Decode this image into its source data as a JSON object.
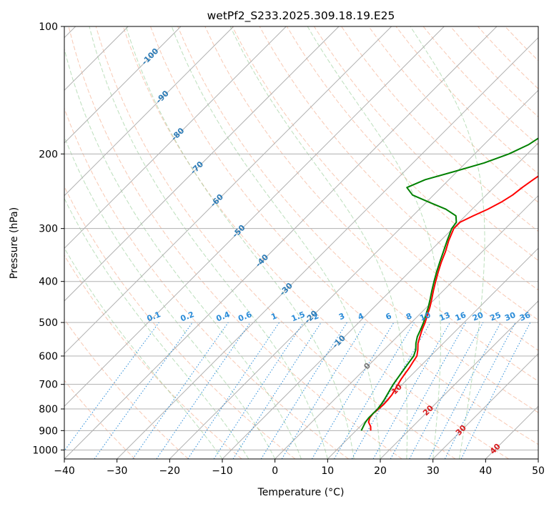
{
  "chart_data": {
    "type": "line",
    "title": "wetPf2_S233.2025.309.18.19.E25",
    "xlabel": "Temperature (°C)",
    "ylabel": "Pressure (hPa)",
    "xlim": [
      -40,
      50
    ],
    "ylim": [
      1050,
      100
    ],
    "x_ticks": [
      "−40",
      "−30",
      "−20",
      "−10",
      "0",
      "10",
      "20",
      "30",
      "40",
      "50"
    ],
    "y_ticks": [
      "100",
      "200",
      "300",
      "400",
      "500",
      "600",
      "700",
      "800",
      "900",
      "1000"
    ],
    "series": [
      {
        "name": "Temperature",
        "color": "#ff0000",
        "points": [
          [
            900,
            12.8
          ],
          [
            880,
            12.0
          ],
          [
            860,
            10.8
          ],
          [
            840,
            10.2
          ],
          [
            820,
            10.0
          ],
          [
            800,
            10.2
          ],
          [
            780,
            10.3
          ],
          [
            760,
            10.2
          ],
          [
            740,
            10.0
          ],
          [
            720,
            9.6
          ],
          [
            700,
            9.2
          ],
          [
            680,
            8.8
          ],
          [
            660,
            8.5
          ],
          [
            640,
            8.2
          ],
          [
            620,
            7.8
          ],
          [
            600,
            7.4
          ],
          [
            580,
            6.4
          ],
          [
            560,
            5.2
          ],
          [
            540,
            4.3
          ],
          [
            520,
            3.4
          ],
          [
            500,
            2.6
          ],
          [
            480,
            1.6
          ],
          [
            460,
            0.6
          ],
          [
            440,
            -0.6
          ],
          [
            420,
            -1.9
          ],
          [
            400,
            -3.2
          ],
          [
            380,
            -4.5
          ],
          [
            360,
            -5.8
          ],
          [
            340,
            -7.0
          ],
          [
            320,
            -8.5
          ],
          [
            300,
            -9.8
          ],
          [
            290,
            -9.8
          ],
          [
            280,
            -8.5
          ],
          [
            270,
            -7.0
          ],
          [
            260,
            -5.8
          ],
          [
            250,
            -5.0
          ],
          [
            240,
            -4.6
          ],
          [
            230,
            -4.0
          ],
          [
            220,
            -3.3
          ],
          [
            210,
            -2.6
          ],
          [
            200,
            -1.8
          ],
          [
            190,
            -1.0
          ],
          [
            180,
            -0.4
          ],
          [
            170,
            0.6
          ],
          [
            160,
            2.2
          ],
          [
            150,
            4.0
          ],
          [
            140,
            5.8
          ],
          [
            130,
            7.3
          ],
          [
            120,
            8.5
          ],
          [
            110,
            9.6
          ],
          [
            100,
            10.6
          ]
        ]
      },
      {
        "name": "Dewpoint",
        "color": "#008000",
        "points": [
          [
            900,
            11.0
          ],
          [
            880,
            10.6
          ],
          [
            860,
            10.2
          ],
          [
            840,
            10.0
          ],
          [
            820,
            10.0
          ],
          [
            800,
            10.0
          ],
          [
            780,
            9.8
          ],
          [
            760,
            9.5
          ],
          [
            740,
            9.1
          ],
          [
            720,
            8.7
          ],
          [
            700,
            8.3
          ],
          [
            680,
            8.0
          ],
          [
            660,
            7.7
          ],
          [
            640,
            7.4
          ],
          [
            620,
            7.1
          ],
          [
            600,
            6.8
          ],
          [
            580,
            6.0
          ],
          [
            560,
            4.8
          ],
          [
            540,
            3.8
          ],
          [
            520,
            3.1
          ],
          [
            500,
            2.3
          ],
          [
            480,
            1.3
          ],
          [
            460,
            0.3
          ],
          [
            440,
            -0.9
          ],
          [
            420,
            -2.2
          ],
          [
            400,
            -3.5
          ],
          [
            380,
            -4.8
          ],
          [
            360,
            -6.1
          ],
          [
            340,
            -7.4
          ],
          [
            320,
            -8.8
          ],
          [
            300,
            -10.2
          ],
          [
            290,
            -10.5
          ],
          [
            280,
            -11.8
          ],
          [
            270,
            -15.0
          ],
          [
            260,
            -19.5
          ],
          [
            250,
            -24.0
          ],
          [
            240,
            -26.5
          ],
          [
            230,
            -24.5
          ],
          [
            220,
            -20.5
          ],
          [
            210,
            -16.5
          ],
          [
            200,
            -13.5
          ],
          [
            190,
            -11.5
          ],
          [
            180,
            -10.5
          ],
          [
            170,
            -11.0
          ],
          [
            160,
            -13.0
          ],
          [
            150,
            -16.0
          ],
          [
            140,
            -17.5
          ],
          [
            130,
            -16.5
          ],
          [
            120,
            -15.2
          ],
          [
            110,
            -13.5
          ],
          [
            100,
            -11.0
          ]
        ]
      }
    ],
    "dry_adiabats": [
      -30,
      -20,
      -10,
      0,
      10,
      20,
      30,
      40,
      50,
      60,
      70,
      80,
      90,
      100,
      110,
      120,
      130,
      140,
      150,
      160,
      170,
      180
    ],
    "moist_adiabats": [
      -10,
      -5,
      0,
      5,
      10,
      15,
      20,
      25,
      30,
      35
    ],
    "isotherm_labels": [
      "-100",
      "-90",
      "-80",
      "-70",
      "-60",
      "-50",
      "-40",
      "-30",
      "-20",
      "-10",
      "0",
      "10",
      "20",
      "30",
      "40"
    ],
    "mixing_ratios": [
      "0.1",
      "0.2",
      "0.4",
      "0.6",
      "1",
      "1.5",
      "2",
      "3",
      "4",
      "6",
      "8",
      "10",
      "13",
      "16",
      "20",
      "25",
      "30",
      "36"
    ],
    "mixing_ratio_values": [
      0.1,
      0.2,
      0.4,
      0.6,
      1,
      1.5,
      2,
      3,
      4,
      6,
      8,
      10,
      13,
      16,
      20,
      25,
      30,
      36
    ],
    "colors": {
      "temperature": "#ff0000",
      "dewpoint": "#008000",
      "isotherm": "#b0b0b0",
      "isobar": "#b0b0b0",
      "dry_adiabat": "#f4a582",
      "moist_adiabat": "#8fc98f",
      "mixing_ratio": "#2b8cd8",
      "cold_label": "#2c7bb6",
      "warm_label": "#d7191c",
      "zero_label": "#777777"
    }
  }
}
